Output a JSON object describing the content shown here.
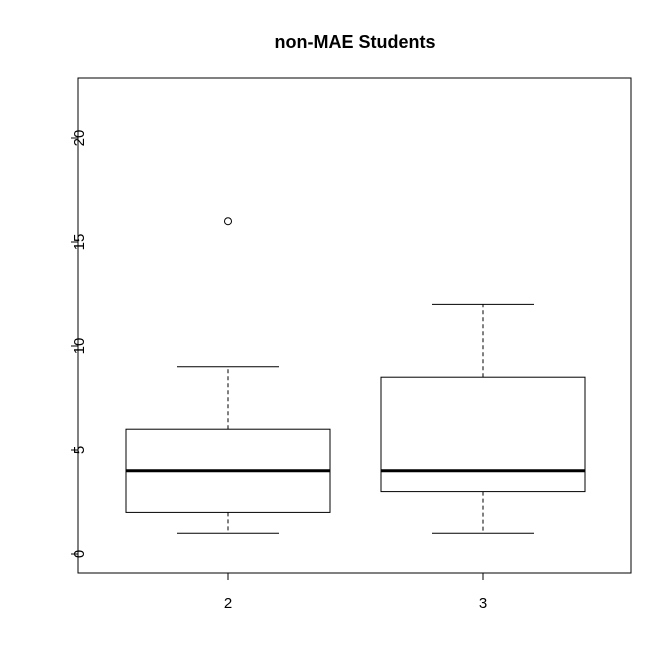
{
  "chart_data": {
    "type": "boxplot",
    "title": "non-MAE Students",
    "xlabel": "",
    "ylabel": "",
    "categories": [
      "2",
      "3"
    ],
    "boxes": [
      {
        "category": "2",
        "lower_whisker": 1,
        "q1": 2,
        "median": 4,
        "q3": 6,
        "upper_whisker": 9,
        "outliers": [
          16
        ]
      },
      {
        "category": "3",
        "lower_whisker": 1,
        "q1": 3,
        "median": 4,
        "q3": 8.5,
        "upper_whisker": 12,
        "outliers": []
      }
    ],
    "y_ticks": [
      0,
      5,
      10,
      15,
      20
    ],
    "ylim": [
      -1,
      22.9
    ],
    "grid": false,
    "legend": "none"
  }
}
